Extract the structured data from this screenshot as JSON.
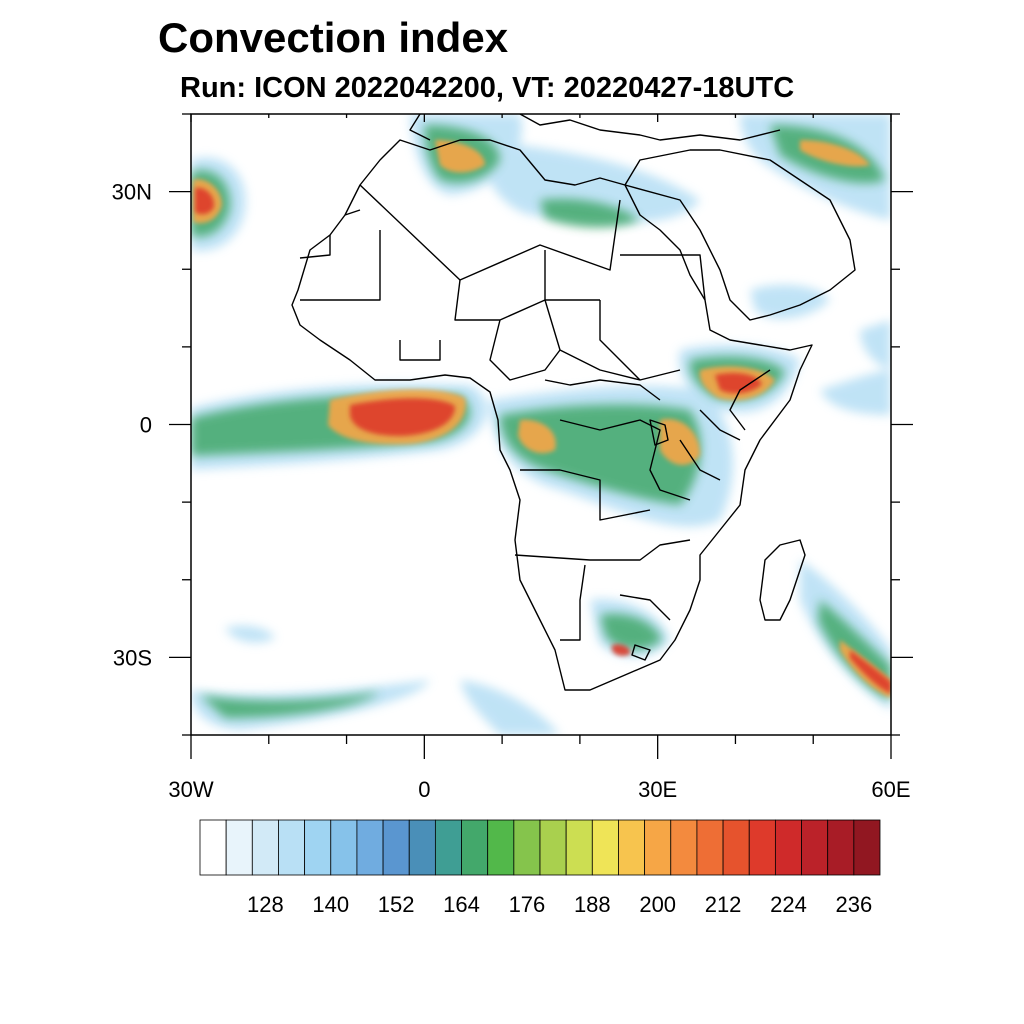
{
  "title": "Convection index",
  "subtitle": "Run: ICON 2022042200,  VT: 20220427-18UTC",
  "map": {
    "region": "Africa",
    "lon_range": [
      -30,
      60
    ],
    "lat_range": [
      -40,
      40
    ],
    "x_ticks": [
      {
        "lon": -30,
        "label": "30W"
      },
      {
        "lon": 0,
        "label": "0"
      },
      {
        "lon": 30,
        "label": "30E"
      },
      {
        "lon": 60,
        "label": "60E"
      }
    ],
    "y_ticks": [
      {
        "lat": 30,
        "label": "30N"
      },
      {
        "lat": 0,
        "label": "0"
      },
      {
        "lat": -30,
        "label": "30S"
      }
    ]
  },
  "colorbar": {
    "colors": [
      "#ffffff",
      "#e8f4fb",
      "#d2eaf7",
      "#b9e0f5",
      "#9fd4f2",
      "#86c2ea",
      "#70ace0",
      "#5a96d0",
      "#4a8fb8",
      "#3f9e94",
      "#43a86b",
      "#52b84a",
      "#85c44c",
      "#a9d04e",
      "#ccde52",
      "#efe457",
      "#f7c44e",
      "#f6a646",
      "#f38a3e",
      "#ee6e35",
      "#e6532d",
      "#de3a2b",
      "#cf2a2a",
      "#bb2229",
      "#a81c26",
      "#911721"
    ],
    "labels": [
      "128",
      "140",
      "152",
      "164",
      "176",
      "188",
      "200",
      "212",
      "224",
      "236"
    ]
  }
}
